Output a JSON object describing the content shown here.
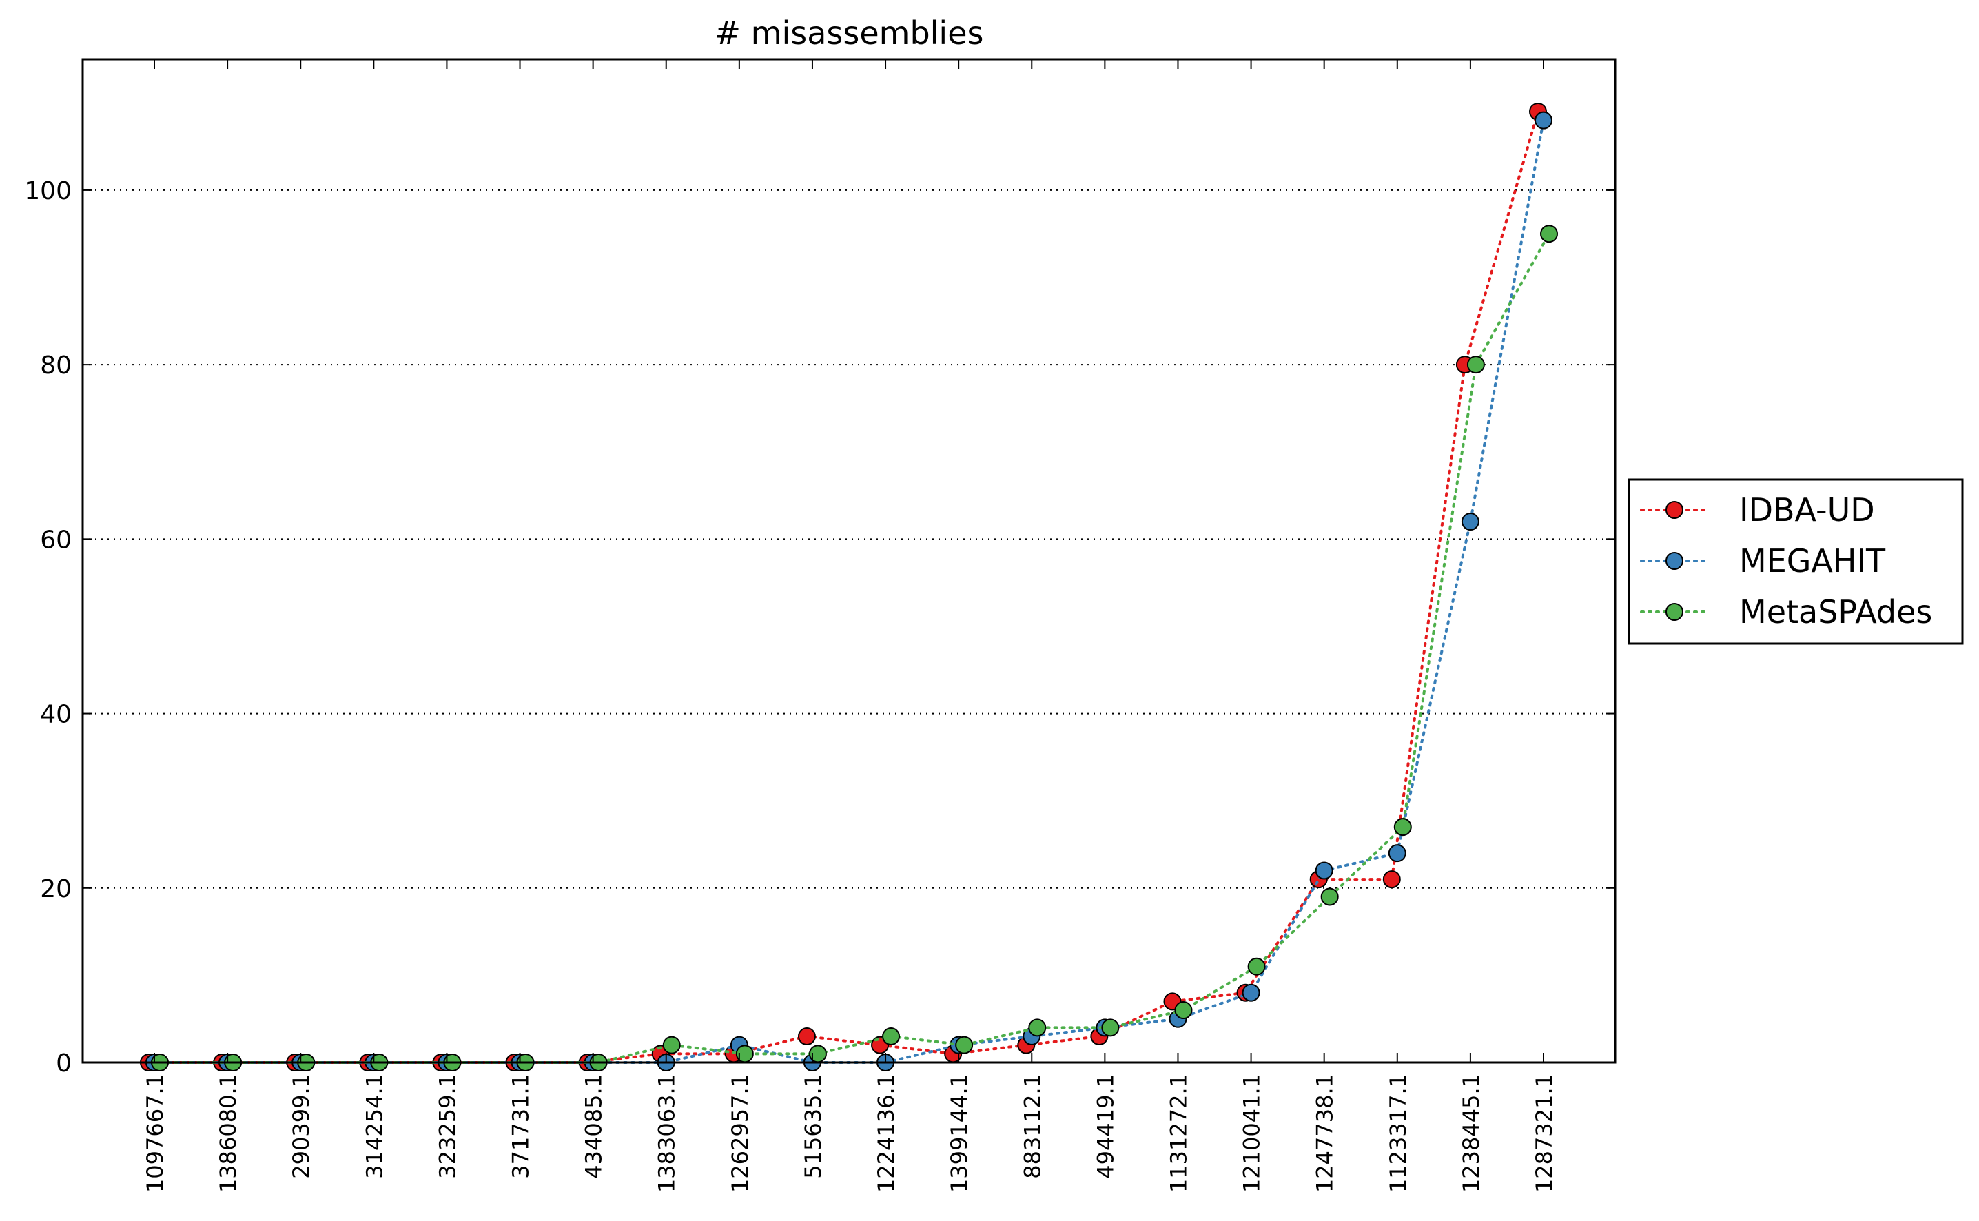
{
  "chart_data": {
    "type": "line",
    "title": "# misassemblies",
    "xlabel": "",
    "ylabel": "",
    "ylim": [
      0,
      115
    ],
    "y_ticks": [
      0,
      20,
      40,
      60,
      80,
      100
    ],
    "grid": "horizontal dotted",
    "legend_position": "right-outside",
    "categories": [
      "1097667.1",
      "1386080.1",
      "290399.1",
      "314254.1",
      "323259.1",
      "371731.1",
      "434085.1",
      "1383063.1",
      "1262957.1",
      "515635.1",
      "1224136.1",
      "1399144.1",
      "883112.1",
      "494419.1",
      "1131272.1",
      "1210041.1",
      "1247738.1",
      "1123317.1",
      "1238445.1",
      "1287321.1"
    ],
    "series": [
      {
        "name": "IDBA-UD",
        "color": "#e41a1c",
        "values": [
          0,
          0,
          0,
          0,
          0,
          0,
          0,
          1,
          1,
          3,
          2,
          1,
          2,
          3,
          7,
          8,
          21,
          21,
          80,
          109
        ]
      },
      {
        "name": "MEGAHIT",
        "color": "#377eb8",
        "values": [
          0,
          0,
          0,
          0,
          0,
          0,
          0,
          0,
          2,
          0,
          0,
          2,
          3,
          4,
          5,
          8,
          22,
          24,
          62,
          108
        ]
      },
      {
        "name": "MetaSPAdes",
        "color": "#4daf4a",
        "values": [
          0,
          0,
          0,
          0,
          0,
          0,
          0,
          2,
          1,
          1,
          3,
          2,
          4,
          4,
          6,
          11,
          19,
          27,
          80,
          95
        ]
      }
    ]
  }
}
